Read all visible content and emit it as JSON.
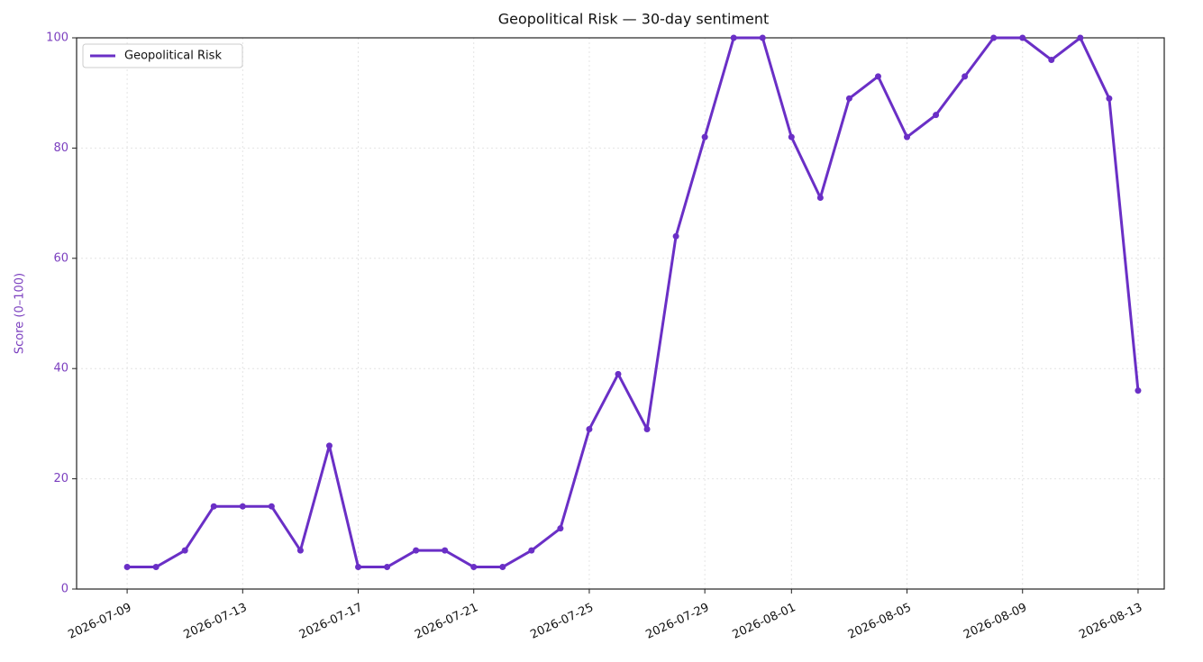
{
  "chart_data": {
    "type": "line",
    "title": "Geopolitical Risk — 30-day sentiment",
    "y_label": "Score (0–100)",
    "x": [
      "2026-07-09",
      "2026-07-10",
      "2026-07-11",
      "2026-07-12",
      "2026-07-13",
      "2026-07-14",
      "2026-07-15",
      "2026-07-16",
      "2026-07-17",
      "2026-07-18",
      "2026-07-19",
      "2026-07-20",
      "2026-07-21",
      "2026-07-22",
      "2026-07-23",
      "2026-07-24",
      "2026-07-25",
      "2026-07-26",
      "2026-07-27",
      "2026-07-28",
      "2026-07-29",
      "2026-07-30",
      "2026-07-31",
      "2026-08-01",
      "2026-08-02",
      "2026-08-03",
      "2026-08-04",
      "2026-08-05",
      "2026-08-06",
      "2026-08-07",
      "2026-08-08",
      "2026-08-09",
      "2026-08-10",
      "2026-08-11",
      "2026-08-12",
      "2026-08-13"
    ],
    "series": [
      {
        "name": "Geopolitical Risk",
        "color": "#6a2fc6",
        "values": [
          4,
          4,
          7,
          15,
          15,
          15,
          7,
          26,
          4,
          4,
          7,
          7,
          4,
          4,
          7,
          11,
          29,
          39,
          29,
          64,
          82,
          100,
          100,
          82,
          71,
          89,
          93,
          82,
          86,
          93,
          100,
          100,
          96,
          100,
          89,
          36
        ]
      }
    ],
    "xlim": [
      "2026-07-07T06:00",
      "2026-08-13T21:45"
    ],
    "xticks": [
      "2026-07-09",
      "2026-07-13",
      "2026-07-17",
      "2026-07-21",
      "2026-07-25",
      "2026-07-29",
      "2026-08-01",
      "2026-08-05",
      "2026-08-09",
      "2026-08-13"
    ],
    "ylim": [
      0,
      100
    ],
    "yticks": [
      0,
      20,
      40,
      60,
      80,
      100
    ],
    "grid": true,
    "legend": "upper-left",
    "axis_color": "#7b3fbf"
  }
}
